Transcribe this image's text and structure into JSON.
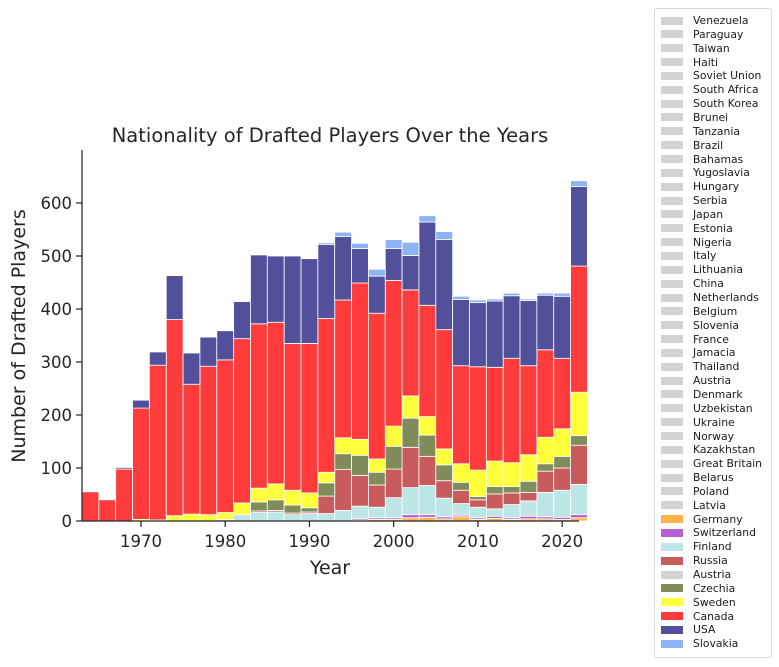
{
  "chart_data": {
    "type": "bar",
    "stacked": true,
    "title": "Nationality of Drafted Players Over the Years",
    "xlabel": "Year",
    "ylabel": "Number of Drafted Players",
    "xlim": [
      1963,
      2022
    ],
    "ylim": [
      0,
      700
    ],
    "xticks": [
      1970,
      1980,
      1990,
      2000,
      2010,
      2020
    ],
    "yticks": [
      0,
      100,
      200,
      300,
      400,
      500,
      600
    ],
    "grid": false,
    "legend_position": "outside-right",
    "categories": [
      1963,
      1965,
      1967,
      1969,
      1971,
      1973,
      1975,
      1977,
      1979,
      1981,
      1983,
      1985,
      1987,
      1989,
      1991,
      1993,
      1995,
      1997,
      1999,
      2001,
      2003,
      2005,
      2007,
      2009,
      2011,
      2013,
      2015,
      2017,
      2019,
      2021
    ],
    "series": [
      {
        "name": "Germany",
        "color": "#ffb347",
        "values": [
          0,
          0,
          0,
          0,
          0,
          0,
          0,
          0,
          0,
          0,
          0,
          0,
          0,
          0,
          0,
          0,
          2,
          3,
          3,
          6,
          7,
          4,
          8,
          3,
          5,
          3,
          4,
          4,
          3,
          6
        ]
      },
      {
        "name": "Switzerland",
        "color": "#b561d4",
        "values": [
          0,
          0,
          0,
          0,
          0,
          0,
          0,
          0,
          0,
          0,
          0,
          0,
          0,
          0,
          0,
          0,
          3,
          3,
          3,
          6,
          5,
          4,
          3,
          3,
          4,
          3,
          5,
          4,
          4,
          6
        ]
      },
      {
        "name": "Finland",
        "color": "#bde6e6",
        "values": [
          0,
          0,
          0,
          0,
          0,
          0,
          0,
          0,
          3,
          12,
          16,
          17,
          12,
          14,
          14,
          20,
          23,
          20,
          38,
          51,
          55,
          35,
          22,
          20,
          14,
          25,
          29,
          46,
          51,
          57
        ]
      },
      {
        "name": "Russia",
        "color": "#c85c5c",
        "values": [
          0,
          0,
          0,
          0,
          0,
          0,
          0,
          0,
          0,
          0,
          3,
          3,
          3,
          3,
          33,
          77,
          58,
          42,
          54,
          76,
          55,
          33,
          25,
          14,
          28,
          22,
          16,
          40,
          42,
          74
        ]
      },
      {
        "name": "Czechia",
        "color": "#808c5a",
        "values": [
          0,
          0,
          0,
          0,
          0,
          0,
          0,
          0,
          0,
          0,
          17,
          20,
          15,
          8,
          25,
          30,
          38,
          24,
          43,
          55,
          40,
          30,
          15,
          6,
          14,
          12,
          21,
          14,
          22,
          18
        ]
      },
      {
        "name": "Sweden",
        "color": "#ffff3b",
        "values": [
          0,
          0,
          0,
          3,
          2,
          10,
          13,
          12,
          13,
          22,
          26,
          30,
          28,
          28,
          20,
          30,
          30,
          25,
          38,
          42,
          35,
          30,
          35,
          50,
          48,
          45,
          50,
          50,
          52,
          82
        ]
      },
      {
        "name": "Canada",
        "color": "#ff3b3b",
        "values": [
          55,
          40,
          98,
          210,
          292,
          370,
          245,
          280,
          288,
          310,
          310,
          305,
          277,
          282,
          290,
          260,
          295,
          275,
          275,
          200,
          210,
          225,
          185,
          195,
          177,
          197,
          168,
          165,
          133,
          238
        ]
      },
      {
        "name": "USA",
        "color": "#52509a",
        "values": [
          0,
          0,
          3,
          15,
          25,
          83,
          59,
          55,
          55,
          70,
          130,
          125,
          165,
          160,
          140,
          120,
          65,
          70,
          60,
          65,
          157,
          170,
          125,
          121,
          125,
          118,
          123,
          103,
          117,
          150
        ]
      },
      {
        "name": "Slovakia",
        "color": "#8db3f2",
        "values": [
          0,
          0,
          0,
          0,
          0,
          0,
          0,
          0,
          0,
          0,
          0,
          0,
          0,
          0,
          3,
          8,
          10,
          13,
          17,
          25,
          12,
          15,
          6,
          5,
          4,
          5,
          3,
          4,
          6,
          11
        ]
      }
    ],
    "legend_entries": [
      {
        "label": "Venezuela",
        "color": "#d3d3d3"
      },
      {
        "label": "Paraguay",
        "color": "#d3d3d3"
      },
      {
        "label": "Taiwan",
        "color": "#d3d3d3"
      },
      {
        "label": "Haiti",
        "color": "#d3d3d3"
      },
      {
        "label": "Soviet Union",
        "color": "#d3d3d3"
      },
      {
        "label": "South Africa",
        "color": "#d3d3d3"
      },
      {
        "label": "South Korea",
        "color": "#d3d3d3"
      },
      {
        "label": "Brunei",
        "color": "#d3d3d3"
      },
      {
        "label": "Tanzania",
        "color": "#d3d3d3"
      },
      {
        "label": "Brazil",
        "color": "#d3d3d3"
      },
      {
        "label": "Bahamas",
        "color": "#d3d3d3"
      },
      {
        "label": "Yugoslavia",
        "color": "#d3d3d3"
      },
      {
        "label": "Hungary",
        "color": "#d3d3d3"
      },
      {
        "label": "Serbia",
        "color": "#d3d3d3"
      },
      {
        "label": "Japan",
        "color": "#d3d3d3"
      },
      {
        "label": "Estonia",
        "color": "#d3d3d3"
      },
      {
        "label": "Nigeria",
        "color": "#d3d3d3"
      },
      {
        "label": "Italy",
        "color": "#d3d3d3"
      },
      {
        "label": "Lithuania",
        "color": "#d3d3d3"
      },
      {
        "label": "China",
        "color": "#d3d3d3"
      },
      {
        "label": "Netherlands",
        "color": "#d3d3d3"
      },
      {
        "label": "Belgium",
        "color": "#d3d3d3"
      },
      {
        "label": "Slovenia",
        "color": "#d3d3d3"
      },
      {
        "label": "France",
        "color": "#d3d3d3"
      },
      {
        "label": "Jamacia",
        "color": "#d3d3d3"
      },
      {
        "label": "Thailand",
        "color": "#d3d3d3"
      },
      {
        "label": "Austria",
        "color": "#d3d3d3"
      },
      {
        "label": "Denmark",
        "color": "#d3d3d3"
      },
      {
        "label": "Uzbekistan",
        "color": "#d3d3d3"
      },
      {
        "label": "Ukraine",
        "color": "#d3d3d3"
      },
      {
        "label": "Norway",
        "color": "#d3d3d3"
      },
      {
        "label": "Kazakhstan",
        "color": "#d3d3d3"
      },
      {
        "label": "Great Britain",
        "color": "#d3d3d3"
      },
      {
        "label": "Belarus",
        "color": "#d3d3d3"
      },
      {
        "label": "Poland",
        "color": "#d3d3d3"
      },
      {
        "label": "Latvia",
        "color": "#d3d3d3"
      },
      {
        "label": "Germany",
        "color": "#ffb347"
      },
      {
        "label": "Switzerland",
        "color": "#b561d4"
      },
      {
        "label": "Finland",
        "color": "#bde6e6"
      },
      {
        "label": "Russia",
        "color": "#c85c5c"
      },
      {
        "label": "Austria",
        "color": "#d3d3d3"
      },
      {
        "label": "Czechia",
        "color": "#808c5a"
      },
      {
        "label": "Sweden",
        "color": "#ffff3b"
      },
      {
        "label": "Canada",
        "color": "#ff3b3b"
      },
      {
        "label": "USA",
        "color": "#52509a"
      },
      {
        "label": "Slovakia",
        "color": "#8db3f2"
      }
    ]
  }
}
